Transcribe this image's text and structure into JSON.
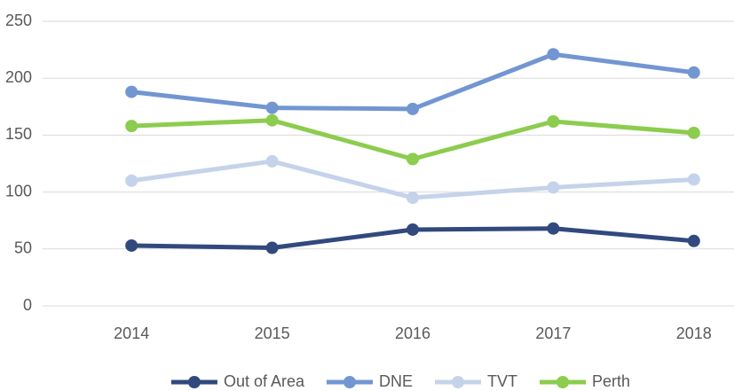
{
  "chart_data": {
    "type": "line",
    "categories": [
      "2014",
      "2015",
      "2016",
      "2017",
      "2018"
    ],
    "series": [
      {
        "name": "Out of Area",
        "color": "#31497d",
        "values": [
          53,
          51,
          67,
          68,
          57
        ]
      },
      {
        "name": "DNE",
        "color": "#7296d2",
        "values": [
          188,
          174,
          173,
          221,
          205
        ]
      },
      {
        "name": "TVT",
        "color": "#c5d3ea",
        "values": [
          110,
          127,
          95,
          104,
          111
        ]
      },
      {
        "name": "Perth",
        "color": "#8ccc4e",
        "values": [
          158,
          163,
          129,
          162,
          152
        ]
      }
    ],
    "ylim": [
      0,
      250
    ],
    "yticks": [
      0,
      50,
      100,
      150,
      200,
      250
    ],
    "grid": true,
    "legend": "bottom"
  }
}
